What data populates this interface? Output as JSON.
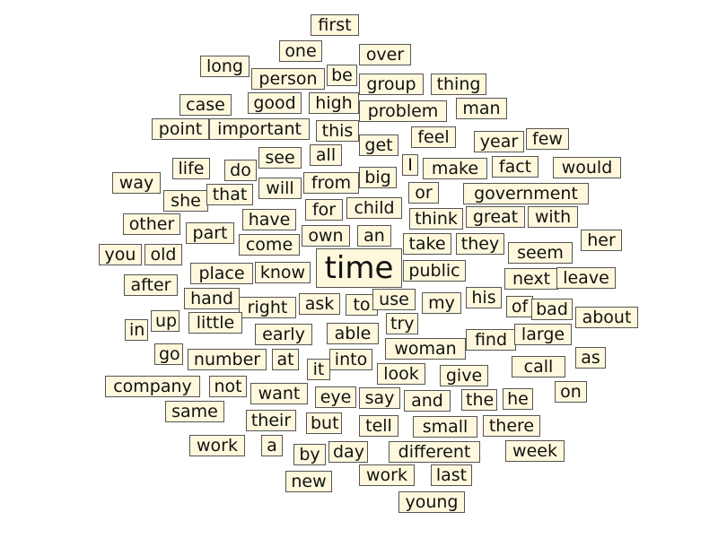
{
  "cloud": {
    "box_color": "#fff8dc",
    "border_color": "#555555",
    "text_color": "#111111",
    "words": [
      "first",
      "one",
      "over",
      "long",
      "person",
      "be",
      "group",
      "thing",
      "case",
      "good",
      "high",
      "problem",
      "man",
      "point",
      "important",
      "this",
      "feel",
      "year",
      "few",
      "get",
      "life",
      "do",
      "see",
      "all",
      "I",
      "make",
      "fact",
      "would",
      "way",
      "she",
      "that",
      "will",
      "from",
      "big",
      "or",
      "government",
      "other",
      "have",
      "for",
      "child",
      "think",
      "great",
      "with",
      "part",
      "own",
      "an",
      "take",
      "they",
      "her",
      "you",
      "old",
      "come",
      "seem",
      "time",
      "public",
      "place",
      "know",
      "next",
      "leave",
      "after",
      "hand",
      "right",
      "ask",
      "to",
      "use",
      "my",
      "his",
      "of",
      "bad",
      "about",
      "in",
      "up",
      "little",
      "early",
      "able",
      "try",
      "find",
      "large",
      "go",
      "number",
      "at",
      "into",
      "woman",
      "as",
      "it",
      "look",
      "give",
      "call",
      "company",
      "not",
      "want",
      "eye",
      "say",
      "and",
      "the",
      "he",
      "on",
      "same",
      "their",
      "but",
      "tell",
      "small",
      "there",
      "work",
      "a",
      "by",
      "day",
      "different",
      "week",
      "new",
      "work",
      "last",
      "young"
    ]
  }
}
